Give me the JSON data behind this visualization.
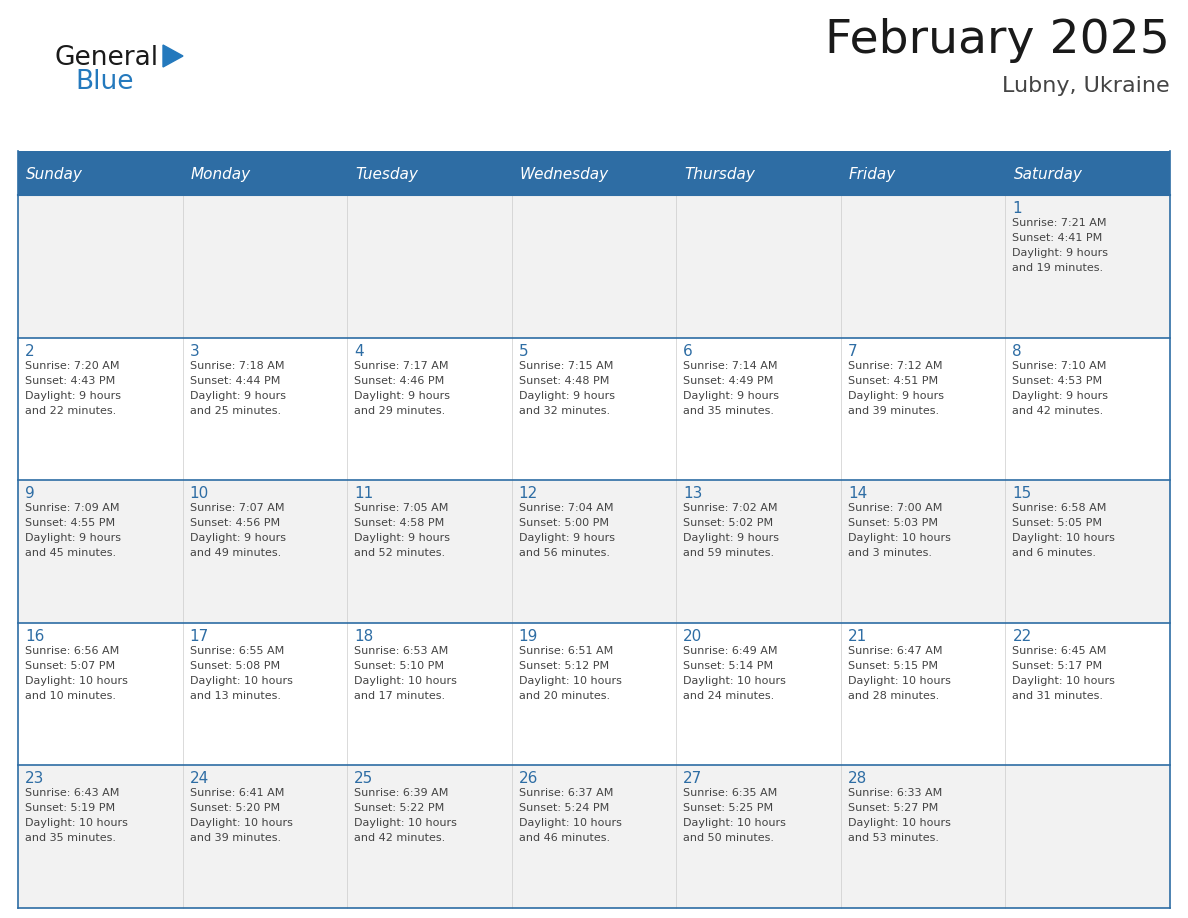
{
  "title": "February 2025",
  "subtitle": "Lubny, Ukraine",
  "header_bg": "#2E6DA4",
  "header_text": "#FFFFFF",
  "cell_bg_odd": "#F2F2F2",
  "cell_bg_even": "#FFFFFF",
  "border_color": "#2E6DA4",
  "day_headers": [
    "Sunday",
    "Monday",
    "Tuesday",
    "Wednesday",
    "Thursday",
    "Friday",
    "Saturday"
  ],
  "title_color": "#1a1a1a",
  "subtitle_color": "#444444",
  "day_num_color": "#2E6DA4",
  "cell_text_color": "#444444",
  "calendar_data": [
    [
      {
        "day": null,
        "lines": []
      },
      {
        "day": null,
        "lines": []
      },
      {
        "day": null,
        "lines": []
      },
      {
        "day": null,
        "lines": []
      },
      {
        "day": null,
        "lines": []
      },
      {
        "day": null,
        "lines": []
      },
      {
        "day": "1",
        "lines": [
          "Sunrise: 7:21 AM",
          "Sunset: 4:41 PM",
          "Daylight: 9 hours",
          "and 19 minutes."
        ]
      }
    ],
    [
      {
        "day": "2",
        "lines": [
          "Sunrise: 7:20 AM",
          "Sunset: 4:43 PM",
          "Daylight: 9 hours",
          "and 22 minutes."
        ]
      },
      {
        "day": "3",
        "lines": [
          "Sunrise: 7:18 AM",
          "Sunset: 4:44 PM",
          "Daylight: 9 hours",
          "and 25 minutes."
        ]
      },
      {
        "day": "4",
        "lines": [
          "Sunrise: 7:17 AM",
          "Sunset: 4:46 PM",
          "Daylight: 9 hours",
          "and 29 minutes."
        ]
      },
      {
        "day": "5",
        "lines": [
          "Sunrise: 7:15 AM",
          "Sunset: 4:48 PM",
          "Daylight: 9 hours",
          "and 32 minutes."
        ]
      },
      {
        "day": "6",
        "lines": [
          "Sunrise: 7:14 AM",
          "Sunset: 4:49 PM",
          "Daylight: 9 hours",
          "and 35 minutes."
        ]
      },
      {
        "day": "7",
        "lines": [
          "Sunrise: 7:12 AM",
          "Sunset: 4:51 PM",
          "Daylight: 9 hours",
          "and 39 minutes."
        ]
      },
      {
        "day": "8",
        "lines": [
          "Sunrise: 7:10 AM",
          "Sunset: 4:53 PM",
          "Daylight: 9 hours",
          "and 42 minutes."
        ]
      }
    ],
    [
      {
        "day": "9",
        "lines": [
          "Sunrise: 7:09 AM",
          "Sunset: 4:55 PM",
          "Daylight: 9 hours",
          "and 45 minutes."
        ]
      },
      {
        "day": "10",
        "lines": [
          "Sunrise: 7:07 AM",
          "Sunset: 4:56 PM",
          "Daylight: 9 hours",
          "and 49 minutes."
        ]
      },
      {
        "day": "11",
        "lines": [
          "Sunrise: 7:05 AM",
          "Sunset: 4:58 PM",
          "Daylight: 9 hours",
          "and 52 minutes."
        ]
      },
      {
        "day": "12",
        "lines": [
          "Sunrise: 7:04 AM",
          "Sunset: 5:00 PM",
          "Daylight: 9 hours",
          "and 56 minutes."
        ]
      },
      {
        "day": "13",
        "lines": [
          "Sunrise: 7:02 AM",
          "Sunset: 5:02 PM",
          "Daylight: 9 hours",
          "and 59 minutes."
        ]
      },
      {
        "day": "14",
        "lines": [
          "Sunrise: 7:00 AM",
          "Sunset: 5:03 PM",
          "Daylight: 10 hours",
          "and 3 minutes."
        ]
      },
      {
        "day": "15",
        "lines": [
          "Sunrise: 6:58 AM",
          "Sunset: 5:05 PM",
          "Daylight: 10 hours",
          "and 6 minutes."
        ]
      }
    ],
    [
      {
        "day": "16",
        "lines": [
          "Sunrise: 6:56 AM",
          "Sunset: 5:07 PM",
          "Daylight: 10 hours",
          "and 10 minutes."
        ]
      },
      {
        "day": "17",
        "lines": [
          "Sunrise: 6:55 AM",
          "Sunset: 5:08 PM",
          "Daylight: 10 hours",
          "and 13 minutes."
        ]
      },
      {
        "day": "18",
        "lines": [
          "Sunrise: 6:53 AM",
          "Sunset: 5:10 PM",
          "Daylight: 10 hours",
          "and 17 minutes."
        ]
      },
      {
        "day": "19",
        "lines": [
          "Sunrise: 6:51 AM",
          "Sunset: 5:12 PM",
          "Daylight: 10 hours",
          "and 20 minutes."
        ]
      },
      {
        "day": "20",
        "lines": [
          "Sunrise: 6:49 AM",
          "Sunset: 5:14 PM",
          "Daylight: 10 hours",
          "and 24 minutes."
        ]
      },
      {
        "day": "21",
        "lines": [
          "Sunrise: 6:47 AM",
          "Sunset: 5:15 PM",
          "Daylight: 10 hours",
          "and 28 minutes."
        ]
      },
      {
        "day": "22",
        "lines": [
          "Sunrise: 6:45 AM",
          "Sunset: 5:17 PM",
          "Daylight: 10 hours",
          "and 31 minutes."
        ]
      }
    ],
    [
      {
        "day": "23",
        "lines": [
          "Sunrise: 6:43 AM",
          "Sunset: 5:19 PM",
          "Daylight: 10 hours",
          "and 35 minutes."
        ]
      },
      {
        "day": "24",
        "lines": [
          "Sunrise: 6:41 AM",
          "Sunset: 5:20 PM",
          "Daylight: 10 hours",
          "and 39 minutes."
        ]
      },
      {
        "day": "25",
        "lines": [
          "Sunrise: 6:39 AM",
          "Sunset: 5:22 PM",
          "Daylight: 10 hours",
          "and 42 minutes."
        ]
      },
      {
        "day": "26",
        "lines": [
          "Sunrise: 6:37 AM",
          "Sunset: 5:24 PM",
          "Daylight: 10 hours",
          "and 46 minutes."
        ]
      },
      {
        "day": "27",
        "lines": [
          "Sunrise: 6:35 AM",
          "Sunset: 5:25 PM",
          "Daylight: 10 hours",
          "and 50 minutes."
        ]
      },
      {
        "day": "28",
        "lines": [
          "Sunrise: 6:33 AM",
          "Sunset: 5:27 PM",
          "Daylight: 10 hours",
          "and 53 minutes."
        ]
      },
      {
        "day": null,
        "lines": []
      }
    ]
  ],
  "logo_text1": "General",
  "logo_text2": "Blue",
  "logo_text1_color": "#1a1a1a",
  "logo_text2_color": "#2479BD",
  "logo_triangle_color": "#2479BD",
  "fig_width": 11.88,
  "fig_height": 9.18,
  "dpi": 100
}
